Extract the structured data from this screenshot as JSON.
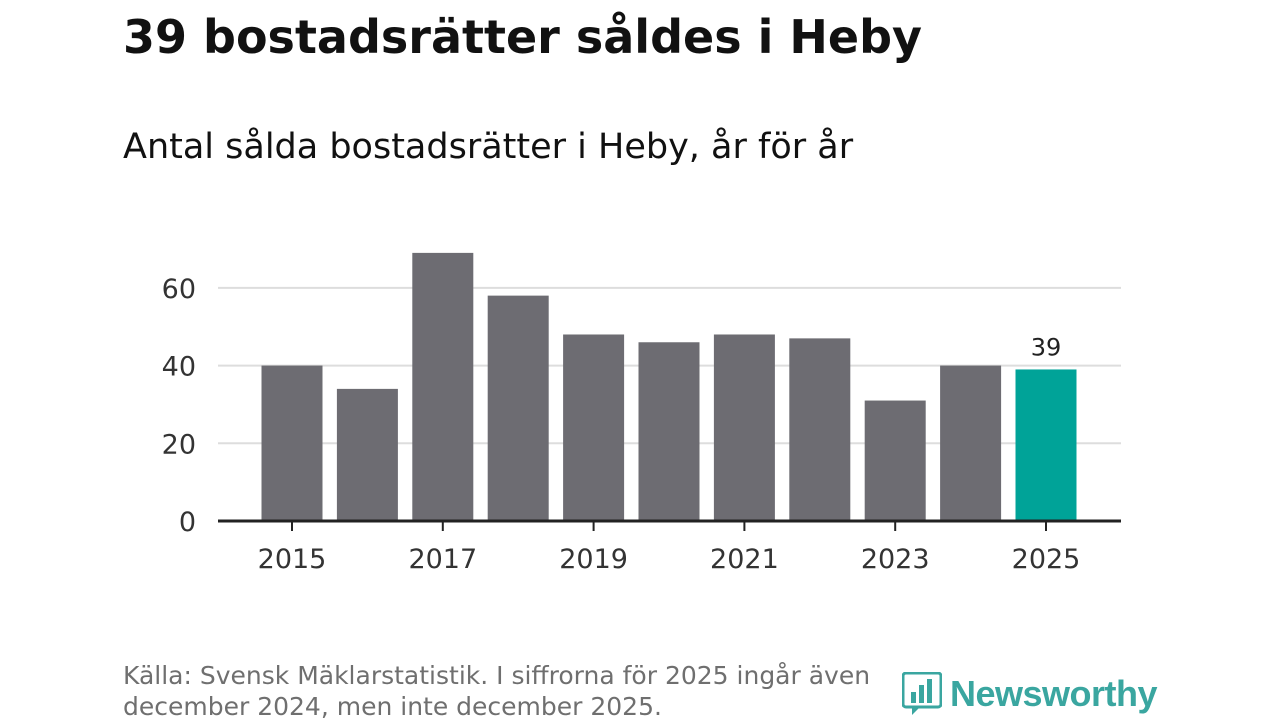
{
  "title": "39 bostadsrätter såldes i Heby",
  "subtitle": "Antal sålda bostadsrätter i Heby, år för år",
  "source_note": "Källa: Svensk Mäklarstatistik. I siffrorna för 2025 ingår även december 2024, men inte december 2025.",
  "brand": "Newsworthy",
  "colors": {
    "bar": "#6d6c72",
    "highlight": "#00a398",
    "grid": "#dddddd",
    "axis": "#222222",
    "brand": "#3aa6a0"
  },
  "chart_data": {
    "type": "bar",
    "title": "39 bostadsrätter såldes i Heby",
    "subtitle": "Antal sålda bostadsrätter i Heby, år för år",
    "categories": [
      "2015",
      "2016",
      "2017",
      "2018",
      "2019",
      "2020",
      "2021",
      "2022",
      "2023",
      "2024",
      "2025"
    ],
    "values": [
      40,
      34,
      69,
      58,
      48,
      46,
      48,
      47,
      31,
      40,
      39
    ],
    "highlight_index": 10,
    "data_labels": [
      {
        "index": 10,
        "text": "39"
      }
    ],
    "x_tick_labels": [
      "2015",
      "2017",
      "2019",
      "2021",
      "2023",
      "2025"
    ],
    "y_ticks": [
      0,
      20,
      40,
      60
    ],
    "y_tick_labels": [
      "0",
      "20",
      "40",
      "60"
    ],
    "ylim": [
      0,
      70
    ],
    "xlabel": "",
    "ylabel": "",
    "grid": true,
    "legend": "none"
  }
}
